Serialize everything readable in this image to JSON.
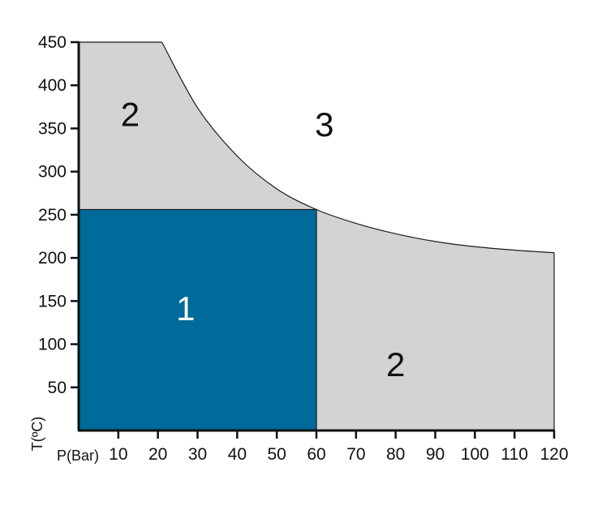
{
  "chart_data": {
    "type": "area",
    "xlabel": "P(Bar)",
    "ylabel": "T(ºC)",
    "xlim": [
      0,
      120
    ],
    "ylim": [
      0,
      450
    ],
    "x_ticks": [
      10,
      20,
      30,
      40,
      50,
      60,
      70,
      80,
      90,
      100,
      110,
      120
    ],
    "y_ticks": [
      50,
      100,
      150,
      200,
      250,
      300,
      350,
      400,
      450
    ],
    "grid": false,
    "colors": {
      "region_1": "#006a9a",
      "region_2": "#d3d3d3",
      "outline": "#1a1a1a",
      "axis": "#111111",
      "label_dark": "#111111",
      "label_light": "#ffffff"
    },
    "boundary_curve": {
      "x": [
        21,
        30,
        40,
        50,
        60,
        70,
        80,
        90,
        100,
        110,
        120
      ],
      "y": [
        450,
        374,
        318,
        280,
        256,
        240,
        228,
        219,
        213,
        209,
        206
      ]
    },
    "regions": [
      {
        "label": "1",
        "x_range": [
          0,
          60
        ],
        "y_range": [
          0,
          256
        ],
        "label_at": [
          27,
          142
        ],
        "color_key": "region_1",
        "text_color_key": "label_light"
      },
      {
        "label": "2",
        "area": "upper-left",
        "label_at": [
          13,
          367
        ],
        "color_key": "region_2",
        "text_color_key": "label_dark"
      },
      {
        "label": "2",
        "area": "right",
        "label_at": [
          80,
          77
        ],
        "color_key": "region_2",
        "text_color_key": "label_dark"
      },
      {
        "label": "3",
        "area": "outside",
        "label_at": [
          62,
          355
        ],
        "color_key": "",
        "text_color_key": "label_dark"
      }
    ]
  }
}
